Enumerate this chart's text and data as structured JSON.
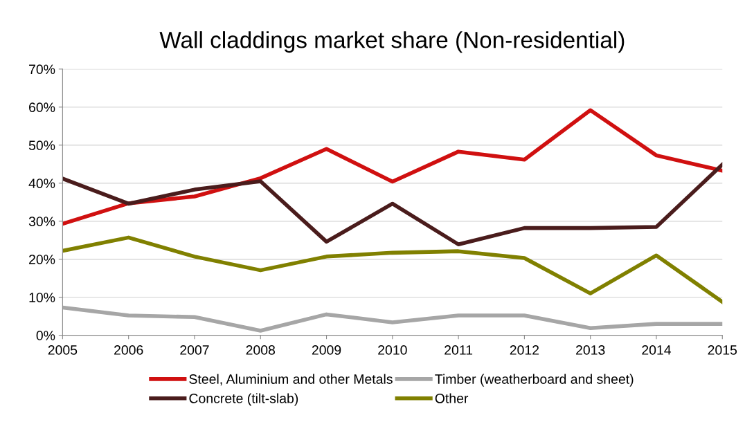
{
  "chart_data": {
    "type": "line",
    "title": "Wall claddings market share (Non-residential)",
    "x": [
      2005,
      2006,
      2007,
      2008,
      2009,
      2010,
      2011,
      2012,
      2013,
      2014,
      2015
    ],
    "xlim": [
      2005,
      2015
    ],
    "xticks": [
      2005,
      2006,
      2007,
      2008,
      2009,
      2010,
      2011,
      2012,
      2013,
      2014,
      2015
    ],
    "ylim": [
      0,
      70
    ],
    "yticks": [
      {
        "value": 0,
        "label": "0%"
      },
      {
        "value": 10,
        "label": "10%"
      },
      {
        "value": 20,
        "label": "20%"
      },
      {
        "value": 30,
        "label": "30%"
      },
      {
        "value": 40,
        "label": "40%"
      },
      {
        "value": 50,
        "label": "50%"
      },
      {
        "value": 60,
        "label": "60%"
      },
      {
        "value": 70,
        "label": "70%"
      }
    ],
    "grid": "y",
    "legend": "bottom",
    "marker": "none",
    "line_style": "solid",
    "series": [
      {
        "name": "Steel, Aluminium and other Metals",
        "color": "#d01010",
        "values": [
          29.3,
          34.7,
          36.5,
          41.3,
          49.0,
          40.4,
          48.3,
          46.2,
          59.2,
          47.3,
          43.3
        ]
      },
      {
        "name": "Concrete (tilt-slab)",
        "color": "#4a1c1c",
        "values": [
          41.2,
          34.6,
          38.3,
          40.5,
          24.6,
          34.6,
          23.9,
          28.2,
          28.2,
          28.5,
          44.9
        ]
      },
      {
        "name": "Timber (weatherboard and sheet)",
        "color": "#a6a6a6",
        "values": [
          7.3,
          5.2,
          4.8,
          1.2,
          5.5,
          3.4,
          5.2,
          5.2,
          1.9,
          3.0,
          3.0
        ]
      },
      {
        "name": "Other",
        "color": "#808000",
        "values": [
          22.2,
          25.7,
          20.7,
          17.1,
          20.7,
          21.7,
          22.1,
          20.3,
          11.0,
          21.0,
          8.8
        ]
      }
    ]
  }
}
